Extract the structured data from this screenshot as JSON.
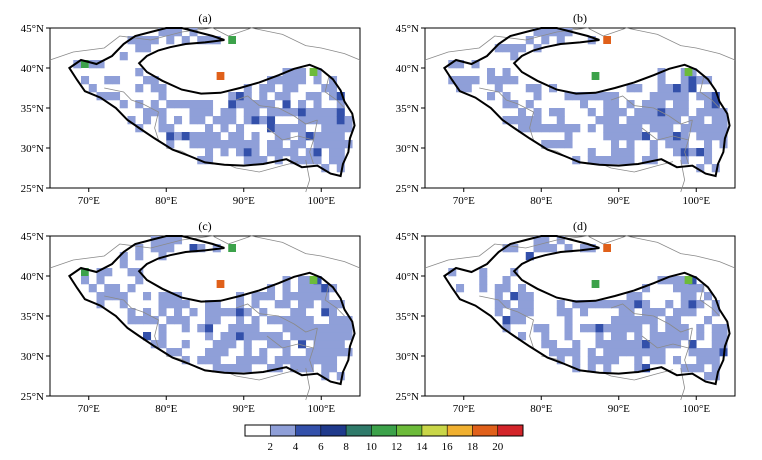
{
  "panels": [
    {
      "label": "(a)",
      "hot": [
        {
          "x": 88.5,
          "y": 43.5,
          "c": 5
        },
        {
          "x": 87,
          "y": 39,
          "c": 9
        },
        {
          "x": 69.5,
          "y": 40.5,
          "c": 5
        },
        {
          "x": 99,
          "y": 39.5,
          "c": 6
        }
      ]
    },
    {
      "label": "(b)",
      "hot": [
        {
          "x": 88.5,
          "y": 43.5,
          "c": 9
        },
        {
          "x": 87,
          "y": 39,
          "c": 5
        },
        {
          "x": 99,
          "y": 39.5,
          "c": 6
        }
      ]
    },
    {
      "label": "(c)",
      "hot": [
        {
          "x": 88.5,
          "y": 43.5,
          "c": 5
        },
        {
          "x": 87,
          "y": 39,
          "c": 9
        },
        {
          "x": 69.5,
          "y": 40.5,
          "c": 5
        },
        {
          "x": 99,
          "y": 39.5,
          "c": 6
        }
      ]
    },
    {
      "label": "(d)",
      "hot": [
        {
          "x": 88.5,
          "y": 43.5,
          "c": 9
        },
        {
          "x": 87,
          "y": 39,
          "c": 5
        },
        {
          "x": 99,
          "y": 39.5,
          "c": 6
        }
      ]
    }
  ],
  "axes": {
    "x_ticks": [
      {
        "value": 70,
        "label": "70°E"
      },
      {
        "value": 80,
        "label": "80°E"
      },
      {
        "value": 90,
        "label": "90°E"
      },
      {
        "value": 100,
        "label": "100°E"
      }
    ],
    "y_ticks": [
      {
        "value": 25,
        "label": "25°N"
      },
      {
        "value": 30,
        "label": "30°N"
      },
      {
        "value": 35,
        "label": "35°N"
      },
      {
        "value": 40,
        "label": "40°N"
      },
      {
        "value": 45,
        "label": "45°N"
      }
    ],
    "lon_range": [
      65,
      105
    ],
    "lat_range": [
      25,
      45
    ]
  },
  "colorbar": {
    "labels": [
      "2",
      "4",
      "6",
      "8",
      "10",
      "12",
      "14",
      "16",
      "18",
      "20"
    ],
    "colors": [
      "#ffffff",
      "#8f9fd8",
      "#3350aa",
      "#1f3a8c",
      "#2f7a6a",
      "#3ca24a",
      "#6cbb3a",
      "#c9d648",
      "#f0b030",
      "#e0601a",
      "#d3252a"
    ]
  },
  "cell_color": "#8f9fd8",
  "dark_cell_color": "#3350aa"
}
